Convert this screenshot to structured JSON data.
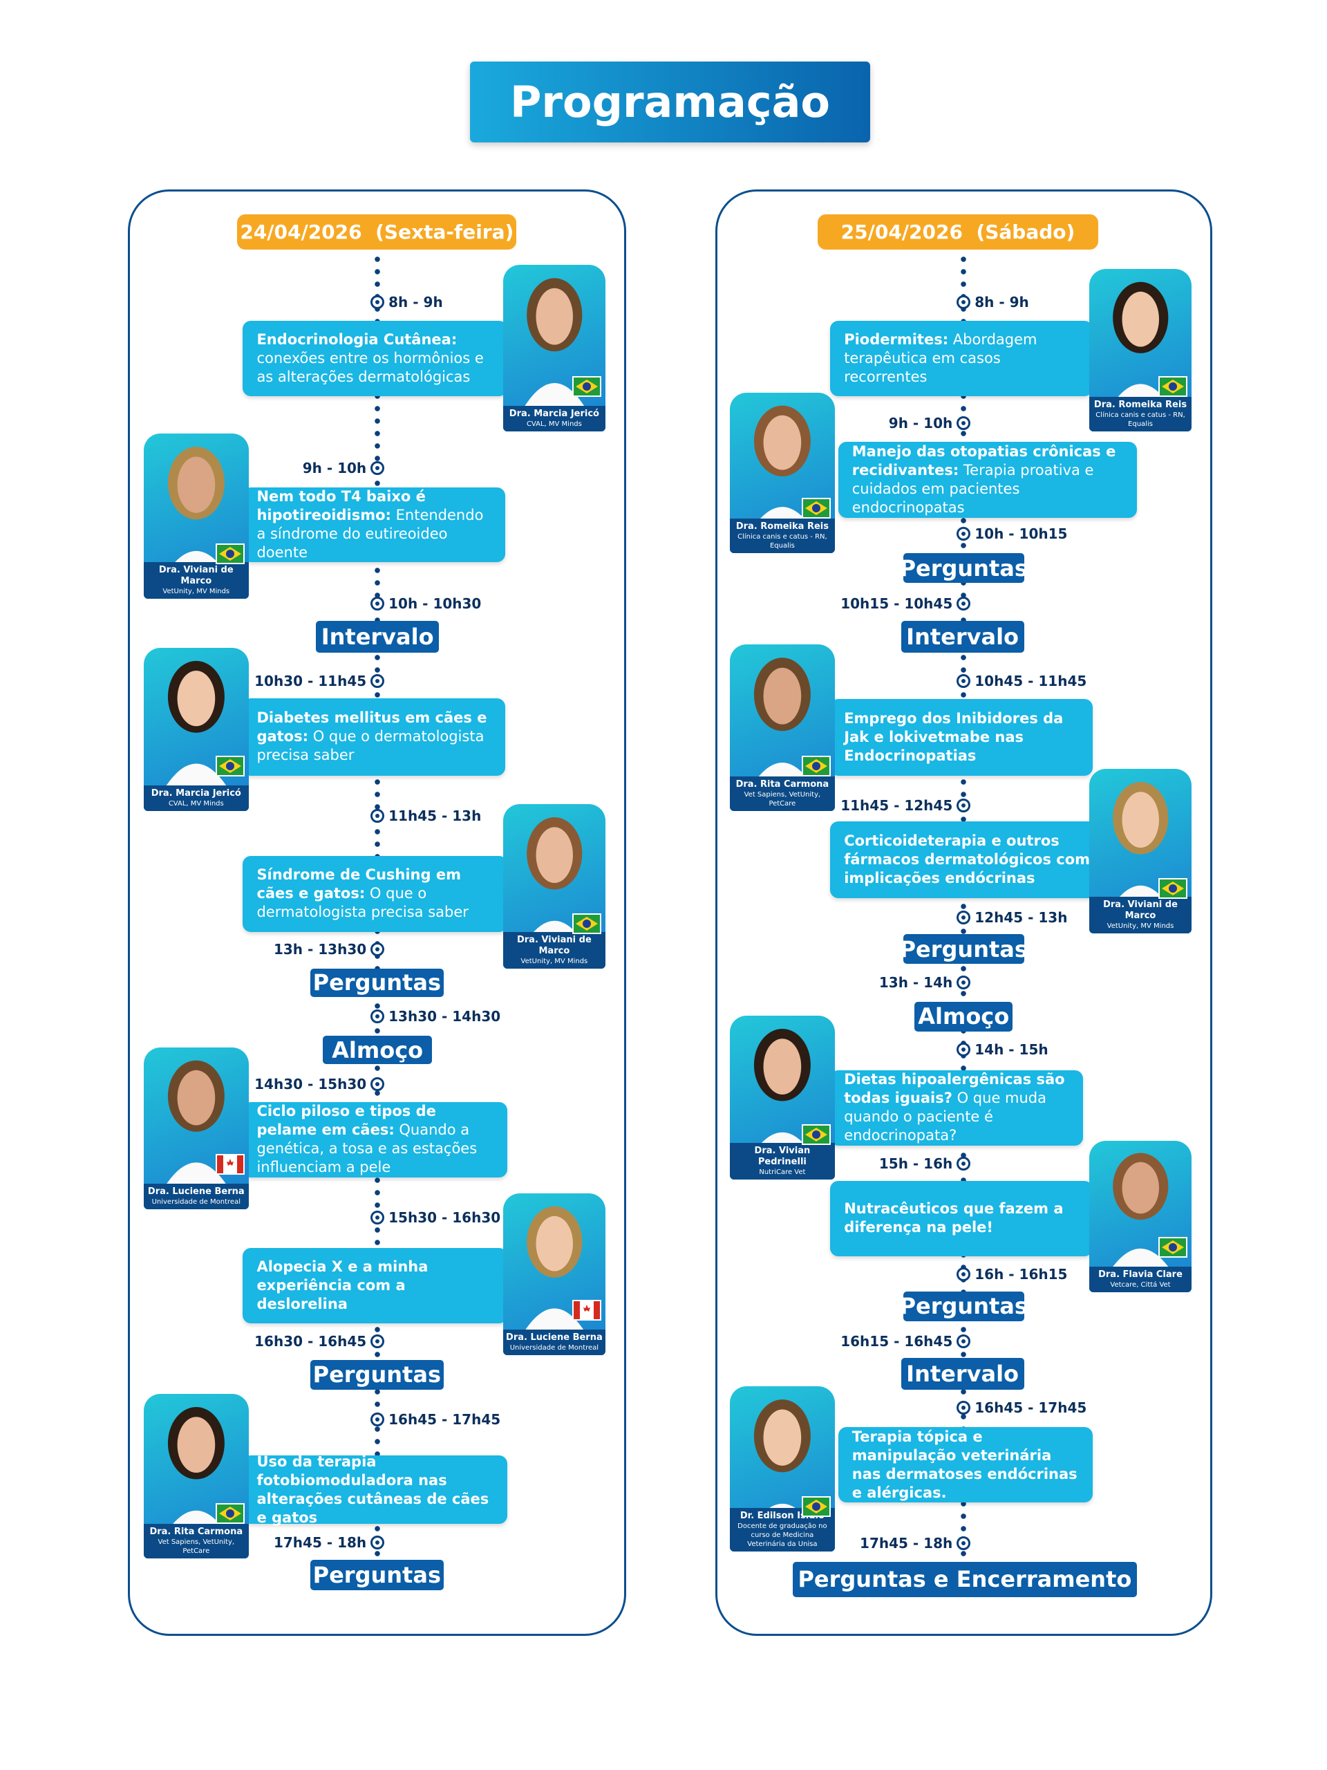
{
  "title": "Programação",
  "days": [
    {
      "date": "24/04/2026  (Sexta-feira)",
      "entries": [
        {
          "time": "8h - 9h"
        },
        {
          "bold": "Endocrinologia Cutânea:",
          "text": "conexões entre os hormônios e as alterações dermatológicas",
          "speaker": "Dra. Marcia Jericó",
          "affiliation": "CVAL, MV Minds"
        },
        {
          "time": "9h - 10h"
        },
        {
          "bold": "Nem todo T4 baixo é hipotireoidismo:",
          "text": "Entendendo a síndrome do eutireoideo doente",
          "speaker": "Dra. Viviani de Marco",
          "affiliation": "VetUnity, MV Minds"
        },
        {
          "time": "10h - 10h30"
        },
        {
          "label": "Intervalo"
        },
        {
          "time": "10h30 - 11h45"
        },
        {
          "bold": "Diabetes mellitus em cães e gatos:",
          "text": "O que o dermatologista precisa saber",
          "speaker": "Dra. Marcia Jericó",
          "affiliation": "CVAL, MV Minds"
        },
        {
          "time": "11h45 - 13h"
        },
        {
          "bold": "Síndrome de Cushing em cães e gatos:",
          "text": "O que o dermatologista precisa saber",
          "speaker": "Dra. Viviani de Marco",
          "affiliation": "VetUnity, MV Minds"
        },
        {
          "time": "13h - 13h30"
        },
        {
          "label": "Perguntas"
        },
        {
          "time": "13h30 - 14h30"
        },
        {
          "label": "Almoço"
        },
        {
          "time": "14h30 - 15h30"
        },
        {
          "bold": "Ciclo piloso e tipos de pelame em cães:",
          "text": "Quando a genética, a tosa e as estações influenciam a pele",
          "speaker": "Dra. Luciene Berna",
          "affiliation": "Universidade de Montreal"
        },
        {
          "time": "15h30 - 16h30"
        },
        {
          "bold": "Alopecia X e a minha experiência com a deslorelina",
          "speaker": "Dra. Luciene Berna",
          "affiliation": "Universidade de Montreal"
        },
        {
          "time": "16h30 - 16h45"
        },
        {
          "label": "Perguntas"
        },
        {
          "time": "16h45 - 17h45"
        },
        {
          "bold": "Uso da terapia fotobiomoduladora nas alterações cutâneas de cães e gatos",
          "speaker": "Dra. Rita Carmona",
          "affiliation": "Vet Sapiens, VetUnity, PetCare"
        },
        {
          "time": "17h45 - 18h"
        },
        {
          "label": "Perguntas"
        }
      ]
    },
    {
      "date": "25/04/2026  (Sábado)",
      "entries": [
        {
          "time": "8h - 9h"
        },
        {
          "bold": "Piodermites:",
          "text": "Abordagem terapêutica em casos recorrentes",
          "speaker": "Dra. Romeika Reis",
          "affiliation": "Clínica canis e catus - RN, Equalis"
        },
        {
          "time": "9h - 10h"
        },
        {
          "bold": "Manejo das otopatias crônicas e recidivantes:",
          "text": "Terapia proativa e cuidados em pacientes endocrinopatas",
          "speaker": "Dra. Romeika Reis",
          "affiliation": "Clínica canis e catus - RN, Equalis"
        },
        {
          "time": "10h - 10h15"
        },
        {
          "label": "Perguntas"
        },
        {
          "time": "10h15 - 10h45"
        },
        {
          "label": "Intervalo"
        },
        {
          "time": "10h45 - 11h45"
        },
        {
          "bold": "Emprego dos Inibidores da Jak e lokivetmabe nas Endocrinopatias",
          "speaker": "Dra. Rita Carmona",
          "affiliation": "Vet Sapiens, VetUnity, PetCare"
        },
        {
          "time": "11h45 - 12h45"
        },
        {
          "bold": "Corticoideterapia e outros fármacos dermatológicos com implicações endócrinas",
          "speaker": "Dra. Viviani de Marco",
          "affiliation": "VetUnity, MV Minds"
        },
        {
          "time": "12h45 - 13h"
        },
        {
          "label": "Perguntas"
        },
        {
          "time": "13h - 14h"
        },
        {
          "label": "Almoço"
        },
        {
          "time": "14h - 15h"
        },
        {
          "bold": "Dietas hipoalergênicas são todas iguais?",
          "text": "O que muda quando o paciente é endocrinopata?",
          "speaker": "Dra. Vivian Pedrinelli",
          "affiliation": "NutriCare Vet"
        },
        {
          "time": "15h - 16h"
        },
        {
          "bold": "Nutracêuticos que fazem a diferença na pele!",
          "speaker": "Dra. Flavia Clare",
          "affiliation": "Vetcare, Cittá Vet"
        },
        {
          "time": "16h - 16h15"
        },
        {
          "label": "Perguntas"
        },
        {
          "time": "16h15 - 16h45"
        },
        {
          "label": "Intervalo"
        },
        {
          "time": "16h45 - 17h45"
        },
        {
          "bold": "Terapia tópica e manipulação veterinária nas dermatoses endócrinas e alérgicas.",
          "speaker": "Dr. Edilson Isidio",
          "affiliation": "Docente de graduação no curso de Medicina Veterinária da Unisa"
        },
        {
          "time": "17h45 - 18h"
        },
        {
          "label": "Perguntas e Encerramento"
        }
      ]
    }
  ]
}
